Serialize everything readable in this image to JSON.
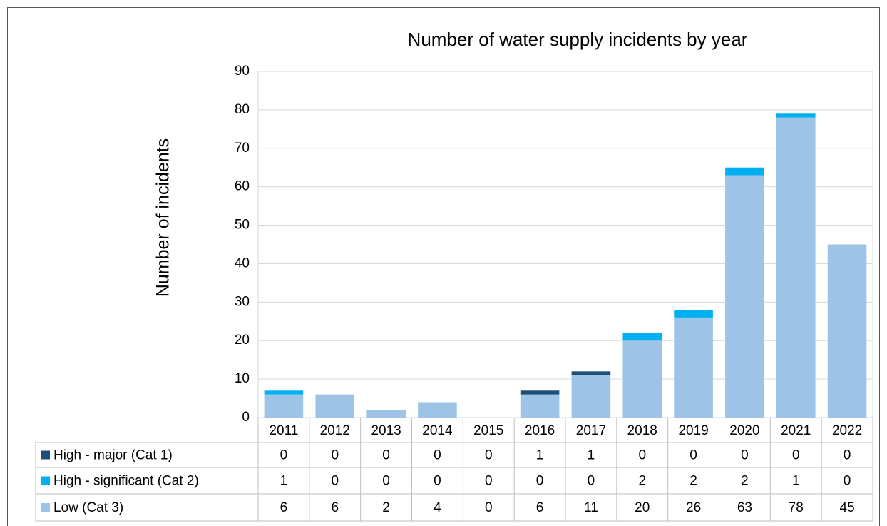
{
  "chart_data": {
    "type": "stacked_bar",
    "title": "Number of water supply incidents by year",
    "y_label": "Number of incidents",
    "categories": [
      "2011",
      "2012",
      "2013",
      "2014",
      "2015",
      "2016",
      "2017",
      "2018",
      "2019",
      "2020",
      "2021",
      "2022"
    ],
    "series": [
      {
        "name": "High - major (Cat 1)",
        "color": "#1f4e79",
        "values": [
          0,
          0,
          0,
          0,
          0,
          1,
          1,
          0,
          0,
          0,
          0,
          0
        ]
      },
      {
        "name": "High - significant (Cat 2)",
        "color": "#00b0f0",
        "values": [
          1,
          0,
          0,
          0,
          0,
          0,
          0,
          2,
          2,
          2,
          1,
          0
        ]
      },
      {
        "name": "Low (Cat 3)",
        "color": "#9dc3e6",
        "values": [
          6,
          6,
          2,
          4,
          0,
          6,
          11,
          20,
          26,
          63,
          78,
          45
        ]
      }
    ],
    "ylim": [
      0,
      90
    ],
    "yticks": [
      0,
      10,
      20,
      30,
      40,
      50,
      60,
      70,
      80,
      90
    ],
    "grid": true,
    "data_table": true
  }
}
